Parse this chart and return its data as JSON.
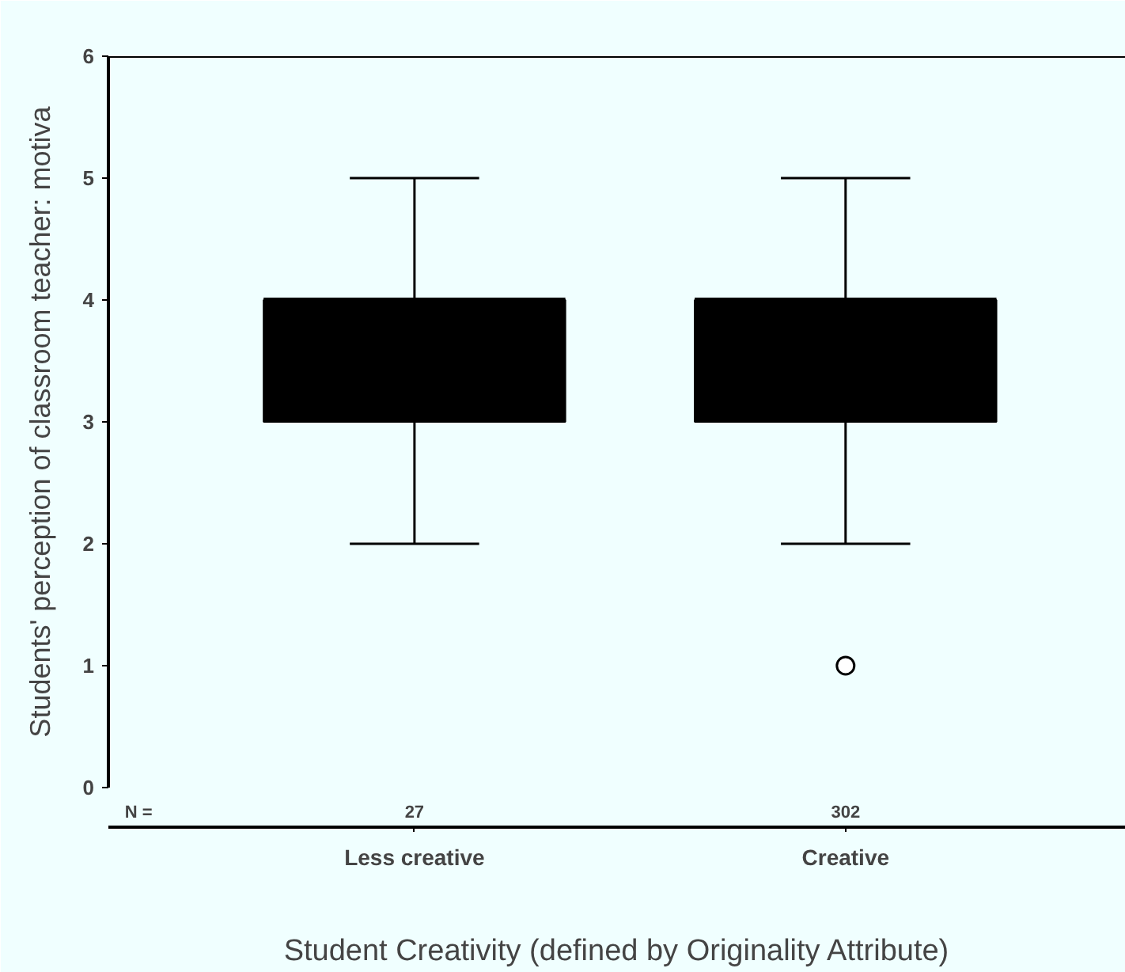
{
  "chart_data": {
    "type": "box",
    "categories": [
      "Less creative",
      "Creative"
    ],
    "xlabel": "Student Creativity (defined by Originality Attribute)",
    "ylabel": "Students' perception of classroom teacher: motiva",
    "ylim": [
      0,
      6
    ],
    "yticks": [
      0,
      1,
      2,
      3,
      4,
      5,
      6
    ],
    "boxes": [
      {
        "low": 2,
        "q1": 3,
        "median": 4,
        "q3": 4,
        "high": 5
      },
      {
        "low": 2,
        "q1": 3,
        "median": 4,
        "q3": 4,
        "high": 5,
        "outliers": [
          1
        ]
      }
    ],
    "color": "#000000",
    "annotations": [
      "N =",
      "27",
      "302"
    ],
    "grid": false
  }
}
